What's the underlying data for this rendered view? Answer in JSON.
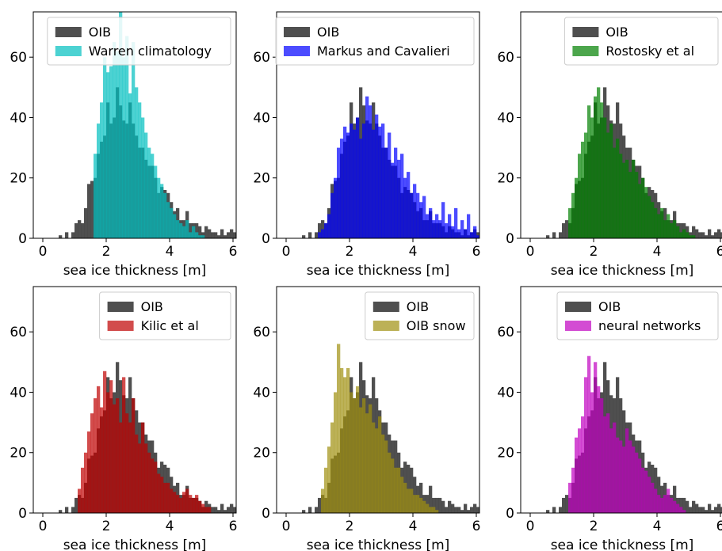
{
  "chart_data": [
    {
      "type": "bar",
      "xlabel": "sea ice thickness [m]",
      "xlim": [
        -0.3,
        6.1
      ],
      "ylim": [
        0,
        75
      ],
      "xticks": [
        0,
        2,
        4,
        6
      ],
      "yticks": [
        0,
        20,
        40,
        60
      ],
      "bin_width": 0.1,
      "legend": "top-right",
      "series": [
        {
          "name": "OIB",
          "color": "#404040",
          "x_start": 0.5,
          "values": [
            1,
            0,
            2,
            0,
            2,
            5,
            6,
            5,
            10,
            18,
            19,
            20,
            28,
            32,
            34,
            45,
            38,
            40,
            50,
            44,
            39,
            38,
            45,
            38,
            34,
            30,
            30,
            26,
            24,
            24,
            20,
            15,
            17,
            16,
            15,
            12,
            9,
            10,
            6,
            6,
            9,
            5,
            5,
            5,
            4,
            2,
            4,
            3,
            2,
            2,
            1,
            3,
            1,
            2,
            3,
            2,
            1,
            0
          ]
        },
        {
          "name": "Warren climatology",
          "color": "#00bfbf",
          "x_start": 1.6,
          "values": [
            28,
            38,
            45,
            60,
            55,
            57,
            65,
            62,
            75,
            60,
            67,
            48,
            65,
            50,
            45,
            40,
            35,
            30,
            28,
            24,
            20,
            18,
            15,
            12,
            10,
            8,
            6,
            5,
            4,
            6,
            2,
            4,
            2,
            1,
            1,
            0
          ]
        }
      ]
    },
    {
      "type": "bar",
      "xlabel": "sea ice thickness [m]",
      "xlim": [
        -0.3,
        6.1
      ],
      "ylim": [
        0,
        75
      ],
      "xticks": [
        0,
        2,
        4,
        6
      ],
      "yticks": [
        0,
        20,
        40,
        60
      ],
      "bin_width": 0.1,
      "legend": "top-right",
      "series": [
        {
          "name": "OIB",
          "color": "#404040",
          "x_start": 0.5,
          "values": [
            1,
            0,
            2,
            0,
            2,
            5,
            6,
            5,
            10,
            18,
            19,
            20,
            28,
            32,
            34,
            45,
            38,
            40,
            50,
            44,
            39,
            38,
            45,
            38,
            34,
            30,
            30,
            26,
            24,
            24,
            20,
            15,
            17,
            16,
            15,
            12,
            9,
            10,
            6,
            6,
            9,
            5,
            5,
            5,
            4,
            2,
            4,
            3,
            2,
            2,
            1,
            3,
            1,
            2,
            3,
            2,
            1,
            0
          ]
        },
        {
          "name": "Markus and Cavalieri",
          "color": "#0000ff",
          "x_start": 1.0,
          "values": [
            2,
            3,
            5,
            8,
            15,
            20,
            30,
            33,
            37,
            35,
            38,
            36,
            40,
            33,
            38,
            47,
            44,
            36,
            41,
            37,
            38,
            30,
            35,
            25,
            30,
            26,
            28,
            20,
            22,
            15,
            18,
            15,
            12,
            14,
            8,
            10,
            6,
            8,
            6,
            12,
            5,
            8,
            4,
            10,
            3,
            6,
            3,
            8,
            2,
            4,
            1,
            0
          ]
        }
      ]
    },
    {
      "type": "bar",
      "xlabel": "sea ice thickness [m]",
      "xlim": [
        -0.3,
        6.1
      ],
      "ylim": [
        0,
        75
      ],
      "xticks": [
        0,
        2,
        4,
        6
      ],
      "yticks": [
        0,
        20,
        40,
        60
      ],
      "bin_width": 0.1,
      "legend": "top-right",
      "series": [
        {
          "name": "OIB",
          "color": "#404040",
          "x_start": 0.5,
          "values": [
            1,
            0,
            2,
            0,
            2,
            5,
            6,
            5,
            10,
            18,
            19,
            20,
            28,
            32,
            34,
            45,
            38,
            40,
            50,
            44,
            39,
            38,
            45,
            38,
            34,
            30,
            30,
            26,
            24,
            24,
            20,
            15,
            17,
            16,
            15,
            12,
            9,
            10,
            6,
            6,
            9,
            5,
            5,
            5,
            4,
            2,
            4,
            3,
            2,
            2,
            1,
            3,
            1,
            2,
            3,
            2,
            1,
            0
          ]
        },
        {
          "name": "Rostosky et al",
          "color": "#008000",
          "x_start": 1.2,
          "values": [
            10,
            15,
            20,
            28,
            32,
            35,
            44,
            40,
            47,
            50,
            45,
            40,
            35,
            38,
            30,
            33,
            28,
            25,
            26,
            22,
            26,
            22,
            18,
            20,
            17,
            14,
            12,
            10,
            8,
            10,
            6,
            8,
            5,
            6,
            4,
            2,
            3,
            2,
            1,
            1,
            0
          ]
        }
      ]
    },
    {
      "type": "bar",
      "xlabel": "sea ice thickness [m]",
      "xlim": [
        -0.3,
        6.1
      ],
      "ylim": [
        0,
        75
      ],
      "xticks": [
        0,
        2,
        4,
        6
      ],
      "yticks": [
        0,
        20,
        40,
        60
      ],
      "bin_width": 0.1,
      "legend": "top-right",
      "series": [
        {
          "name": "OIB",
          "color": "#404040",
          "x_start": 0.5,
          "values": [
            1,
            0,
            2,
            0,
            2,
            5,
            6,
            5,
            10,
            18,
            19,
            20,
            28,
            32,
            34,
            45,
            38,
            40,
            50,
            44,
            39,
            38,
            45,
            38,
            34,
            30,
            30,
            26,
            24,
            24,
            20,
            15,
            17,
            16,
            15,
            12,
            9,
            10,
            6,
            6,
            9,
            5,
            5,
            5,
            4,
            2,
            4,
            3,
            2,
            2,
            1,
            3,
            1,
            2,
            3,
            2,
            1,
            0
          ]
        },
        {
          "name": "Kilic et al",
          "color": "#bf0000",
          "x_start": 1.1,
          "values": [
            8,
            15,
            20,
            27,
            33,
            38,
            42,
            35,
            47,
            40,
            44,
            36,
            38,
            30,
            45,
            33,
            30,
            38,
            26,
            23,
            30,
            23,
            20,
            18,
            17,
            13,
            12,
            10,
            10,
            8,
            7,
            6,
            5,
            7,
            8,
            6,
            5,
            6,
            4,
            3,
            2,
            2,
            0
          ]
        }
      ]
    },
    {
      "type": "bar",
      "xlabel": "sea ice thickness [m]",
      "xlim": [
        -0.3,
        6.1
      ],
      "ylim": [
        0,
        75
      ],
      "xticks": [
        0,
        2,
        4,
        6
      ],
      "yticks": [
        0,
        20,
        40,
        60
      ],
      "bin_width": 0.1,
      "legend": "top-right",
      "series": [
        {
          "name": "OIB",
          "color": "#404040",
          "x_start": 0.5,
          "values": [
            1,
            0,
            2,
            0,
            2,
            5,
            6,
            5,
            10,
            18,
            19,
            20,
            28,
            32,
            34,
            45,
            38,
            40,
            50,
            44,
            39,
            38,
            45,
            38,
            34,
            30,
            30,
            26,
            24,
            24,
            20,
            15,
            17,
            16,
            15,
            12,
            9,
            10,
            6,
            6,
            9,
            5,
            5,
            5,
            4,
            2,
            4,
            3,
            2,
            2,
            1,
            3,
            1,
            2,
            3,
            2,
            1,
            0
          ]
        },
        {
          "name": "OIB snow",
          "color": "#a09010",
          "x_start": 1.1,
          "values": [
            8,
            15,
            22,
            30,
            40,
            56,
            48,
            45,
            48,
            40,
            38,
            42,
            35,
            38,
            33,
            36,
            30,
            28,
            32,
            26,
            24,
            20,
            18,
            15,
            15,
            12,
            10,
            8,
            8,
            6,
            6,
            5,
            4,
            3,
            2,
            2,
            1,
            0
          ]
        }
      ]
    },
    {
      "type": "bar",
      "xlabel": "sea ice thickness [m]",
      "xlim": [
        -0.3,
        6.1
      ],
      "ylim": [
        0,
        75
      ],
      "xticks": [
        0,
        2,
        4,
        6
      ],
      "yticks": [
        0,
        20,
        40,
        60
      ],
      "bin_width": 0.1,
      "legend": "top-right",
      "series": [
        {
          "name": "OIB",
          "color": "#404040",
          "x_start": 0.5,
          "values": [
            1,
            0,
            2,
            0,
            2,
            5,
            6,
            5,
            10,
            18,
            19,
            20,
            28,
            32,
            34,
            45,
            38,
            40,
            50,
            44,
            39,
            38,
            45,
            38,
            34,
            30,
            30,
            26,
            24,
            24,
            20,
            15,
            17,
            16,
            15,
            12,
            9,
            10,
            6,
            6,
            9,
            5,
            5,
            5,
            4,
            2,
            4,
            3,
            2,
            2,
            1,
            3,
            1,
            2,
            3,
            2,
            1,
            0
          ]
        },
        {
          "name": "neural networks",
          "color": "#c000c0",
          "x_start": 1.2,
          "values": [
            10,
            15,
            25,
            28,
            32,
            45,
            52,
            40,
            50,
            42,
            38,
            32,
            33,
            28,
            30,
            25,
            24,
            22,
            28,
            24,
            22,
            20,
            18,
            15,
            14,
            12,
            10,
            8,
            6,
            5,
            6,
            8,
            5,
            4,
            3,
            2,
            1,
            0
          ]
        }
      ]
    }
  ]
}
